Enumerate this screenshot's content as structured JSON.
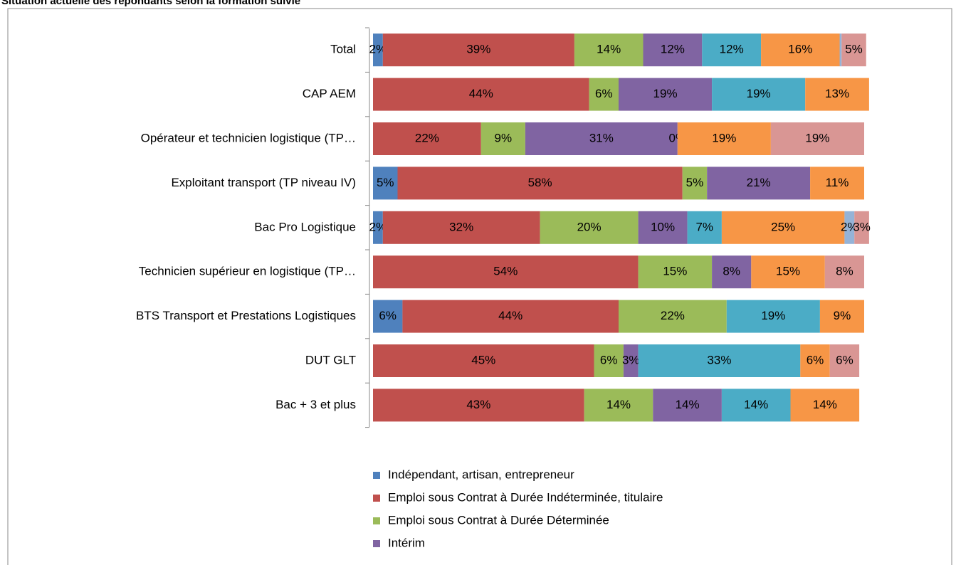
{
  "chart_data": {
    "type": "stacked-bar-horizontal",
    "title": "Situation actuelle des répondants selon la formation suivie",
    "categories": [
      "Total",
      "CAP AEM",
      "Opérateur et technicien logistique (TP…",
      "Exploitant transport (TP niveau IV)",
      "Bac Pro Logistique",
      "Technicien supérieur en logistique (TP…",
      "BTS Transport et Prestations Logistiques",
      "DUT GLT",
      "Bac + 3 et plus"
    ],
    "xlim": [
      0,
      100
    ],
    "series": [
      {
        "name": "Indépendant, artisan, entrepreneur",
        "color": "#4f81bd",
        "values": [
          2,
          null,
          null,
          5,
          2,
          null,
          6,
          null,
          null
        ],
        "value_labels": [
          "2%",
          null,
          null,
          "5%",
          "2%",
          null,
          "6%",
          null,
          null
        ]
      },
      {
        "name": "Emploi sous Contrat à Durée Indéterminée, titulaire",
        "color": "#c0504d",
        "values": [
          39,
          44,
          22,
          58,
          32,
          54,
          44,
          45,
          43
        ],
        "value_labels": [
          "39%",
          "44%",
          "22%",
          "58%",
          "32%",
          "54%",
          "44%",
          "45%",
          "43%"
        ]
      },
      {
        "name": "Emploi sous Contrat à Durée Déterminée",
        "color": "#9bbb59",
        "values": [
          14,
          6,
          9,
          5,
          20,
          15,
          22,
          6,
          14
        ],
        "value_labels": [
          "14%",
          "6%",
          "9%",
          "5%",
          "20%",
          "15%",
          "22%",
          "6%",
          "14%"
        ]
      },
      {
        "name": "Intérim",
        "color": "#8064a2",
        "values": [
          12,
          19,
          31,
          21,
          10,
          8,
          null,
          3,
          14
        ],
        "value_labels": [
          "12%",
          "19%",
          "31%",
          "21%",
          "10%",
          "8%",
          null,
          "3%",
          "14%"
        ]
      },
      {
        "color": "#4bacc6",
        "values": [
          12,
          19,
          0,
          null,
          7,
          null,
          19,
          33,
          14
        ],
        "value_labels": [
          "12%",
          "19%",
          "0%",
          null,
          "7%",
          null,
          "19%",
          "33%",
          "14%"
        ]
      },
      {
        "color": "#f79646",
        "values": [
          16,
          13,
          19,
          11,
          25,
          15,
          9,
          6,
          14
        ],
        "value_labels": [
          "16%",
          "13%",
          "19%",
          "11%",
          "25%",
          "15%",
          "9%",
          "6%",
          "14%"
        ]
      },
      {
        "color": "#95b3d7",
        "values": [
          0.4,
          null,
          null,
          null,
          2,
          null,
          null,
          null,
          null
        ],
        "value_labels": [
          null,
          null,
          null,
          null,
          "2%",
          null,
          null,
          null,
          null
        ]
      },
      {
        "color": "#d99694",
        "values": [
          5,
          null,
          19,
          null,
          3,
          8,
          null,
          6,
          null
        ],
        "value_labels": [
          "5%",
          null,
          "19%",
          null,
          "3%",
          "8%",
          null,
          "6%",
          null
        ]
      }
    ]
  }
}
